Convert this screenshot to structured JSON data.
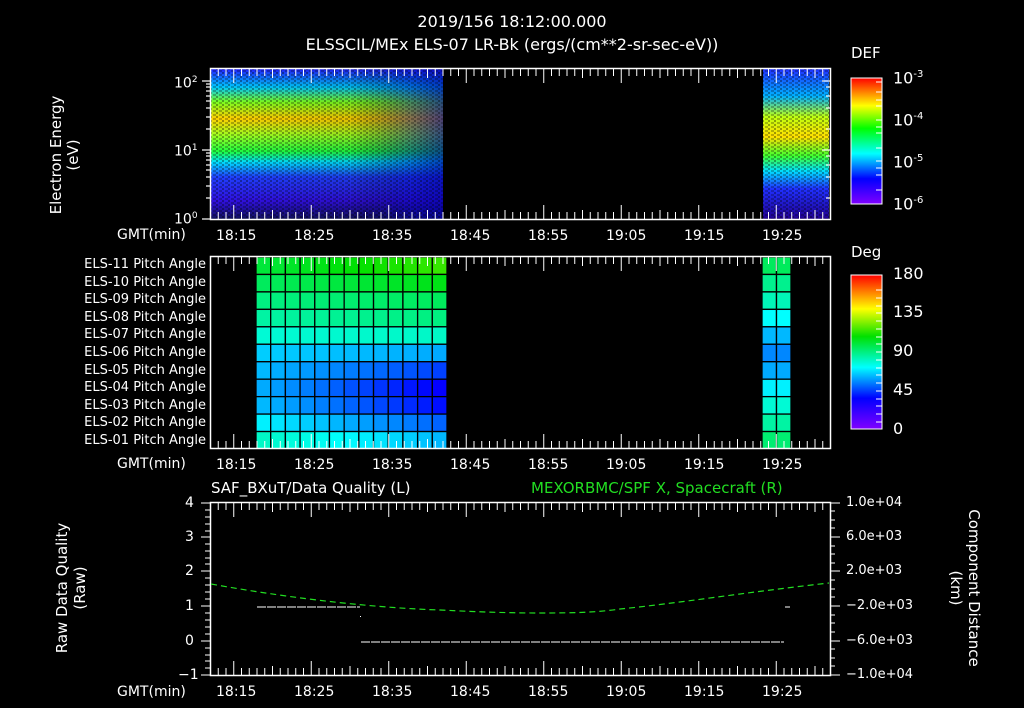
{
  "header": {
    "timestamp": "2019/156 18:12:00.000",
    "subtitle": "ELSSCIL/MEx ELS-07 LR-Bk  (ergs/(cm**2-sr-sec-eV))"
  },
  "x_axis": {
    "label": "GMT(min)",
    "ticks": [
      "18:15",
      "18:25",
      "18:35",
      "18:45",
      "18:55",
      "19:05",
      "19:15",
      "19:25"
    ]
  },
  "panel1": {
    "ylabel_line1": "Electron Energy",
    "ylabel_line2": "(eV)",
    "yticks": [
      {
        "base": "10",
        "exp": "0"
      },
      {
        "base": "10",
        "exp": "1"
      },
      {
        "base": "10",
        "exp": "2"
      }
    ],
    "colorbar": {
      "title": "DEF",
      "labels": [
        {
          "base": "10",
          "exp": "-3"
        },
        {
          "base": "10",
          "exp": "-4"
        },
        {
          "base": "10",
          "exp": "-5"
        },
        {
          "base": "10",
          "exp": "-6"
        }
      ]
    }
  },
  "panel2": {
    "rows": [
      "ELS-11 Pitch Angle",
      "ELS-10 Pitch Angle",
      "ELS-09 Pitch Angle",
      "ELS-08 Pitch Angle",
      "ELS-07 Pitch Angle",
      "ELS-06 Pitch Angle",
      "ELS-05 Pitch Angle",
      "ELS-04 Pitch Angle",
      "ELS-03 Pitch Angle",
      "ELS-02 Pitch Angle",
      "ELS-01 Pitch Angle"
    ],
    "colorbar": {
      "title": "Deg",
      "labels": [
        "180",
        "135",
        "90",
        "45",
        "0"
      ]
    }
  },
  "panel3": {
    "left_title": "SAF_BXuT/Data Quality (L)",
    "right_title": "MEXORBMC/SPF X, Spacecraft (R)",
    "right_title_color": "#22dd22",
    "ylabel_left_line1": "Raw Data Quality",
    "ylabel_left_line2": "(Raw)",
    "ylabel_right_line1": "Component Distance",
    "ylabel_right_line2": "(km)",
    "yticks_left": [
      "4",
      "3",
      "2",
      "1",
      "0",
      "−1"
    ],
    "yticks_right": [
      "1.0e+04",
      "6.0e+03",
      "2.0e+03",
      "−2.0e+03",
      "−6.0e+03",
      "−1.0e+04"
    ]
  },
  "chart_data": [
    {
      "type": "heatmap",
      "title": "ELSSCIL/MEx ELS-07 LR-Bk (ergs/(cm**2-sr-sec-eV))",
      "xlabel": "GMT(min)",
      "ylabel": "Electron Energy (eV)",
      "x_range": [
        "18:12",
        "19:32"
      ],
      "y_scale": "log",
      "ylim": [
        1,
        150
      ],
      "colorbar": {
        "label": "DEF",
        "scale": "log",
        "range": [
          1e-06,
          0.001
        ]
      },
      "data_intervals": [
        [
          "18:12",
          "18:42"
        ],
        [
          "19:23",
          "19:32"
        ]
      ],
      "description": "Peak flux ~1e-4 to 3e-4 near 20-40 eV during 18:13-18:25, decreasing toward 18:41; second interval 19:23-19:32 peak ~2e-4 near 20 eV"
    },
    {
      "type": "heatmap",
      "title": "ELS pitch angles",
      "xlabel": "GMT(min)",
      "rows": [
        "ELS-11",
        "ELS-10",
        "ELS-09",
        "ELS-08",
        "ELS-07",
        "ELS-06",
        "ELS-05",
        "ELS-04",
        "ELS-03",
        "ELS-02",
        "ELS-01"
      ],
      "colorbar": {
        "label": "Deg",
        "range": [
          0,
          180
        ]
      },
      "data_intervals": [
        [
          "18:18",
          "18:42"
        ],
        [
          "19:23",
          "19:26"
        ]
      ],
      "approx_values_deg": {
        "ELS-11": [
          100,
          115
        ],
        "ELS-10": [
          95,
          105
        ],
        "ELS-09": [
          90,
          95
        ],
        "ELS-08": [
          85,
          90
        ],
        "ELS-07": [
          78,
          80
        ],
        "ELS-06": [
          65,
          60
        ],
        "ELS-05": [
          62,
          45
        ],
        "ELS-04": [
          60,
          35
        ],
        "ELS-03": [
          62,
          38
        ],
        "ELS-02": [
          70,
          50
        ],
        "ELS-01": [
          80,
          62
        ]
      }
    },
    {
      "type": "line",
      "title": "SAF_BXuT/Data Quality (L) & MEXORBMC/SPF X, Spacecraft (R)",
      "xlabel": "GMT(min)",
      "ylabel_left": "Raw Data Quality (Raw)",
      "ylabel_right": "Component Distance (km)",
      "ylim_left": [
        -1,
        4
      ],
      "ylim_right": [
        -10000,
        10000
      ],
      "series": [
        {
          "name": "Data Quality (L)",
          "color": "#ffffff",
          "segments": [
            {
              "x": [
                "18:18",
                "18:31"
              ],
              "y": 1
            },
            {
              "x": [
                "18:31",
                "19:25"
              ],
              "y": 0
            },
            {
              "x": [
                "19:25",
                "19:25"
              ],
              "y": 1
            }
          ]
        },
        {
          "name": "SPF X Spacecraft (R)",
          "color": "#22dd22",
          "x": [
            "18:12",
            "18:22",
            "18:32",
            "18:42",
            "18:52",
            "19:02",
            "19:12",
            "19:22",
            "19:32"
          ],
          "y": [
            2600,
            1200,
            -400,
            -1600,
            -2300,
            -2300,
            -1500,
            0,
            1300
          ]
        }
      ]
    }
  ]
}
